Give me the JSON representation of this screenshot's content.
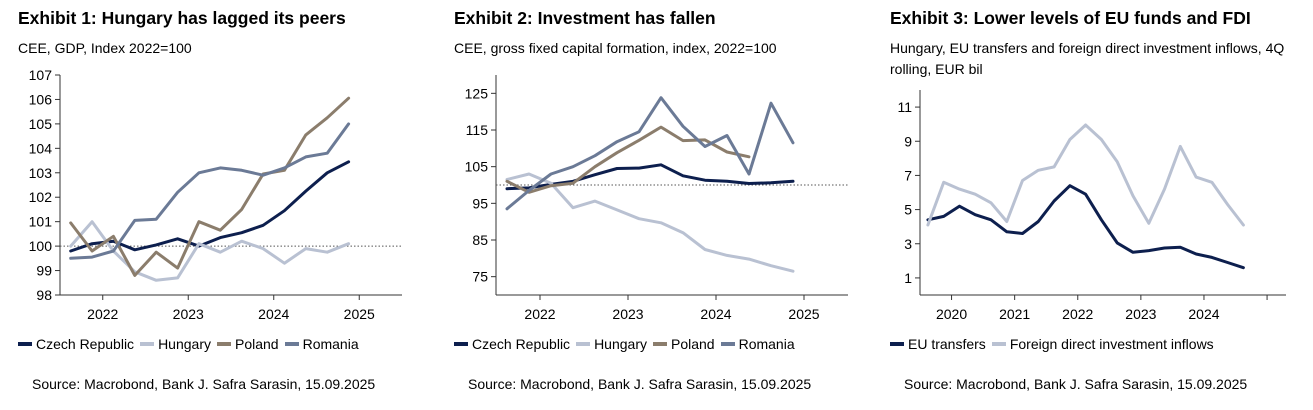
{
  "colors": {
    "czech": "#0d1f4e",
    "hungary": "#b9c1d2",
    "poland": "#8b7d6c",
    "romania": "#6b7a96",
    "eu": "#0d1f4e",
    "fdi": "#b9c1d2"
  },
  "exhibits": [
    {
      "title": "Exhibit 1: Hungary has lagged its peers",
      "subtitle": "CEE, GDP, Index 2022=100",
      "source": "Source: Macrobond, Bank J. Safra Sarasin, 15.09.2025",
      "legend": [
        "Czech Republic",
        "Hungary",
        "Poland",
        "Romania"
      ]
    },
    {
      "title": "Exhibit 2: Investment has fallen",
      "subtitle": "CEE, gross fixed capital formation, index, 2022=100",
      "source": "Source: Macrobond, Bank J. Safra Sarasin, 15.09.2025",
      "legend": [
        "Czech Republic",
        "Hungary",
        "Poland",
        "Romania"
      ]
    },
    {
      "title": "Exhibit 3: Lower levels of EU funds and FDI",
      "subtitle": "Hungary, EU transfers and foreign direct investment inflows, 4Q rolling, EUR bil",
      "source": "Source: Macrobond, Bank J. Safra Sarasin, 15.09.2025",
      "legend": [
        "EU transfers",
        "Foreign direct investment inflows"
      ]
    }
  ],
  "chart_data": [
    {
      "type": "line",
      "title": "Exhibit 1: Hungary has lagged its peers",
      "ylim": [
        98,
        107
      ],
      "yticks": [
        98,
        99,
        100,
        101,
        102,
        103,
        104,
        105,
        106,
        107
      ],
      "ytick_labels": [
        "98",
        "99",
        "100",
        "101",
        "102",
        "103",
        "104",
        "105",
        "106",
        "107"
      ],
      "xlim": [
        2021.5,
        2025.5
      ],
      "xticks": [
        2022,
        2023,
        2024,
        2025
      ],
      "xtick_labels": [
        "2022",
        "2023",
        "2024",
        "2025"
      ],
      "reference_line": 100,
      "x": [
        2021.625,
        2021.875,
        2022.125,
        2022.375,
        2022.625,
        2022.875,
        2023.125,
        2023.375,
        2023.625,
        2023.875,
        2024.125,
        2024.375,
        2024.625,
        2024.875,
        2025.125,
        2025.375
      ],
      "series": [
        {
          "name": "Czech Republic",
          "color_key": "czech",
          "values": [
            99.8,
            100.1,
            100.2,
            99.85,
            100.05,
            100.3,
            100.0,
            100.35,
            100.55,
            100.85,
            101.45,
            102.25,
            103.0,
            103.45,
            null,
            null
          ]
        },
        {
          "name": "Hungary",
          "color_key": "hungary",
          "values": [
            100.0,
            101.0,
            99.8,
            98.95,
            98.6,
            98.7,
            100.1,
            99.75,
            100.2,
            99.9,
            99.3,
            99.9,
            99.75,
            100.1,
            null,
            null
          ]
        },
        {
          "name": "Poland",
          "color_key": "poland",
          "values": [
            100.95,
            99.8,
            100.4,
            98.8,
            99.75,
            99.1,
            101.0,
            100.65,
            101.5,
            102.95,
            103.1,
            104.55,
            105.25,
            106.05,
            null,
            null
          ]
        },
        {
          "name": "Romania",
          "color_key": "romania",
          "values": [
            99.5,
            99.55,
            99.8,
            101.05,
            101.1,
            102.2,
            103.0,
            103.2,
            103.1,
            102.9,
            103.2,
            103.65,
            103.8,
            105.0,
            null,
            null
          ]
        }
      ]
    },
    {
      "type": "line",
      "title": "Exhibit 2: Investment has fallen",
      "ylim": [
        70,
        130
      ],
      "yticks": [
        75,
        85,
        95,
        105,
        115,
        125
      ],
      "ytick_labels": [
        "75",
        "85",
        "95",
        "105",
        "115",
        "125"
      ],
      "xlim": [
        2021.5,
        2025.5
      ],
      "xticks": [
        2022,
        2023,
        2024,
        2025
      ],
      "xtick_labels": [
        "2022",
        "2023",
        "2024",
        "2025"
      ],
      "reference_line": 100,
      "x": [
        2021.625,
        2021.875,
        2022.125,
        2022.375,
        2022.625,
        2022.875,
        2023.125,
        2023.375,
        2023.625,
        2023.875,
        2024.125,
        2024.375,
        2024.625,
        2024.875,
        2025.125,
        2025.375
      ],
      "series": [
        {
          "name": "Czech Republic",
          "color_key": "czech",
          "values": [
            99.0,
            99.2,
            100.2,
            101.0,
            102.8,
            104.5,
            104.6,
            105.5,
            102.5,
            101.3,
            101.0,
            100.4,
            100.6,
            101.0,
            null,
            null
          ]
        },
        {
          "name": "Hungary",
          "color_key": "hungary",
          "values": [
            101.5,
            103.0,
            100.5,
            93.8,
            95.6,
            93.2,
            90.8,
            89.7,
            87.0,
            82.4,
            80.8,
            79.8,
            78.0,
            76.5,
            null,
            null
          ]
        },
        {
          "name": "Poland",
          "color_key": "poland",
          "values": [
            101.0,
            98.0,
            99.8,
            100.5,
            105.0,
            108.8,
            112.2,
            115.8,
            112.1,
            112.3,
            109.0,
            107.7,
            null,
            null,
            null,
            null
          ]
        },
        {
          "name": "Romania",
          "color_key": "romania",
          "values": [
            93.5,
            98.5,
            103.0,
            105.0,
            108.0,
            111.8,
            114.5,
            123.8,
            116.0,
            110.5,
            113.5,
            103.0,
            122.3,
            111.5,
            null,
            null
          ]
        }
      ]
    },
    {
      "type": "line",
      "title": "Exhibit 3: Lower levels of EU funds and FDI",
      "ylim": [
        0,
        12
      ],
      "yticks": [
        1,
        3,
        5,
        7,
        9,
        11
      ],
      "ytick_labels": [
        "1",
        "3",
        "5",
        "7",
        "9",
        "11"
      ],
      "xlim": [
        2019.5,
        2025.3
      ],
      "xticks": [
        2020,
        2021,
        2022,
        2023,
        2024
      ],
      "xtick_labels": [
        "2020",
        "2021",
        "2022",
        "2023",
        "2024"
      ],
      "x": [
        2019.625,
        2019.875,
        2020.125,
        2020.375,
        2020.625,
        2020.875,
        2021.125,
        2021.375,
        2021.625,
        2021.875,
        2022.125,
        2022.375,
        2022.625,
        2022.875,
        2023.125,
        2023.375,
        2023.625,
        2023.875,
        2024.125,
        2024.375,
        2024.625
      ],
      "series": [
        {
          "name": "EU transfers",
          "color_key": "eu",
          "values": [
            4.4,
            4.6,
            5.2,
            4.7,
            4.4,
            3.7,
            3.6,
            4.3,
            5.5,
            6.4,
            5.9,
            4.4,
            3.05,
            2.5,
            2.6,
            2.75,
            2.8,
            2.4,
            2.2,
            1.9,
            1.6
          ]
        },
        {
          "name": "Foreign direct investment inflows",
          "color_key": "fdi",
          "values": [
            4.1,
            6.6,
            6.2,
            5.9,
            5.4,
            4.3,
            6.7,
            7.3,
            7.5,
            9.1,
            9.95,
            9.1,
            7.8,
            5.8,
            4.2,
            6.2,
            8.7,
            6.9,
            6.6,
            5.3,
            4.1
          ]
        }
      ]
    }
  ]
}
